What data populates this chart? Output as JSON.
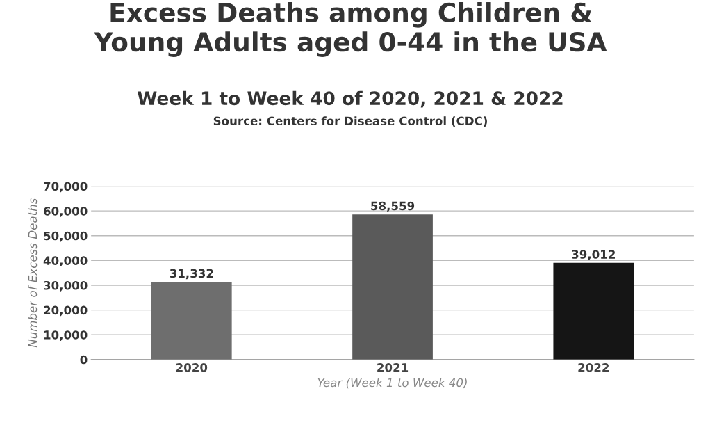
{
  "chart_data": {
    "type": "bar",
    "title": "Excess Deaths among Children &\nYoung Adults aged 0-44 in the USA",
    "subtitle": "Week 1 to Week 40 of 2020, 2021 & 2022",
    "annotations": [
      "Source: Centers for Disease Control (CDC)"
    ],
    "xlabel": "Year (Week 1 to Week 40)",
    "ylabel": "Number of Excess Deaths",
    "categories": [
      "2020",
      "2021",
      "2022"
    ],
    "values": [
      31332,
      58559,
      39012
    ],
    "colors": [
      "#6e6e6e",
      "#5a5a5a",
      "#151515"
    ],
    "value_labels": [
      "31,332",
      "58,559",
      "39,012"
    ],
    "ylim": [
      0,
      70000
    ],
    "yticks": [
      {
        "value": 0,
        "label": "0"
      },
      {
        "value": 10000,
        "label": "10,000"
      },
      {
        "value": 20000,
        "label": "20,000"
      },
      {
        "value": 30000,
        "label": "30,000"
      },
      {
        "value": 40000,
        "label": "40,000"
      },
      {
        "value": 50000,
        "label": "50,000"
      },
      {
        "value": 60000,
        "label": "60,000"
      },
      {
        "value": 70000,
        "label": "70,000"
      }
    ],
    "grid": "y"
  }
}
